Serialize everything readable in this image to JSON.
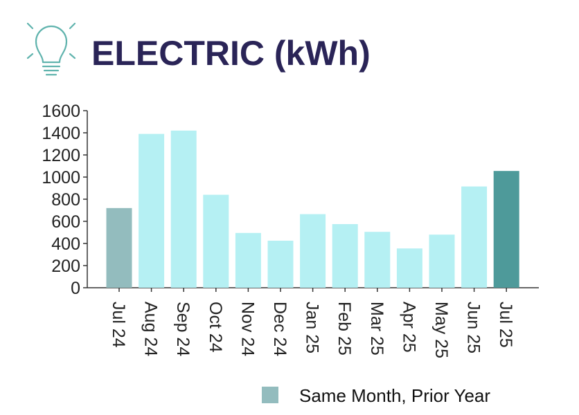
{
  "title": "ELECTRIC (kWh)",
  "icons": {
    "header": "lightbulb-icon"
  },
  "colors": {
    "title": "#2a2457",
    "icon": "#5fb3ad",
    "current": "#b5f0f3",
    "prior_year": "#93bcbe",
    "latest": "#4e9a9a"
  },
  "chart_data": {
    "type": "bar",
    "categories": [
      "Jul 24",
      "Aug 24",
      "Sep 24",
      "Oct 24",
      "Nov 24",
      "Dec 24",
      "Jan 25",
      "Feb 25",
      "Mar 25",
      "Apr 25",
      "May 25",
      "Jun 25",
      "Jul 25"
    ],
    "values": [
      720,
      1390,
      1420,
      840,
      495,
      425,
      665,
      575,
      505,
      355,
      480,
      915,
      1055
    ],
    "bar_roles": [
      "prior_year",
      "current",
      "current",
      "current",
      "current",
      "current",
      "current",
      "current",
      "current",
      "current",
      "current",
      "current",
      "latest"
    ],
    "ylim": [
      0,
      1600
    ],
    "yticks": [
      0,
      200,
      400,
      600,
      800,
      1000,
      1200,
      1400,
      1600
    ],
    "grid": false,
    "xlabel": "",
    "ylabel": "",
    "legend": {
      "position": "bottom-right",
      "entries": [
        {
          "label": "Same Month, Prior Year",
          "role": "prior_year"
        }
      ]
    }
  }
}
